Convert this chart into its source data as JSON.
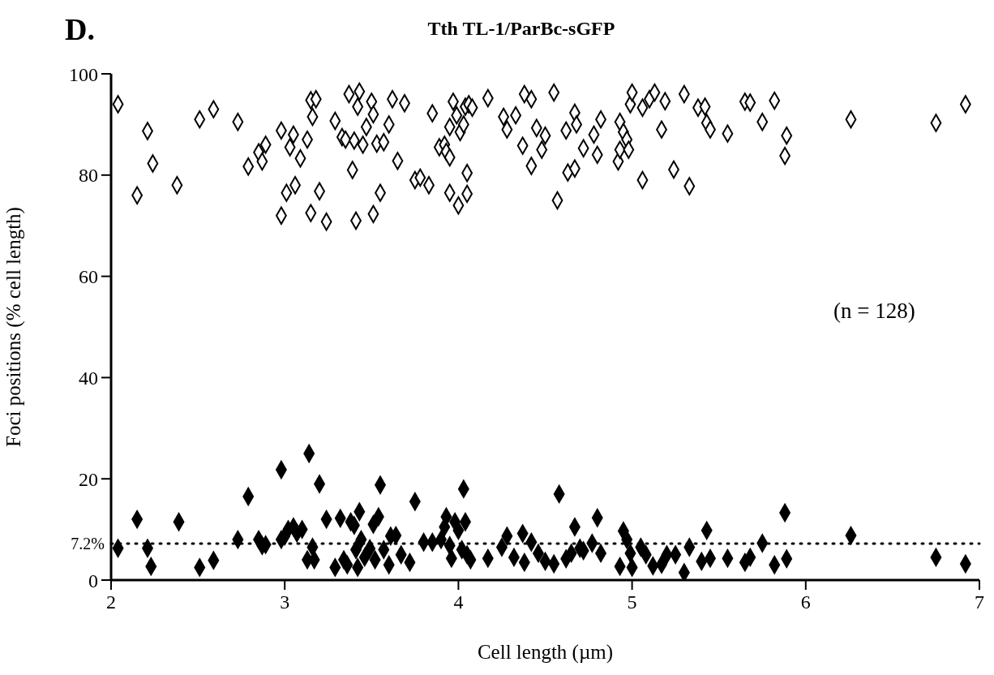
{
  "chart_data": {
    "type": "scatter",
    "title": "Tth TL-1/ParBc-sGFP",
    "xlabel": "Cell length (µm)",
    "ylabel": "Foci positions (% cell length)",
    "annotations": [
      "D.",
      "(n = 128)"
    ],
    "xlim": [
      2,
      7
    ],
    "xticks": [
      2,
      3,
      4,
      5,
      6,
      7
    ],
    "ylim": [
      0,
      100
    ],
    "yticks": [
      0,
      20,
      40,
      60,
      80,
      100
    ],
    "grid": false,
    "legend": false,
    "marker": "diamond",
    "ref_lines": [
      {
        "axis": "y",
        "value": 7.2,
        "label": "7.2%",
        "color": "#000000",
        "line_style": "dotted"
      }
    ],
    "series": [
      {
        "color": "#ffffff",
        "x": [
          2.04,
          2.15,
          2.21,
          2.24,
          2.38,
          2.51,
          2.59,
          2.73,
          2.79,
          2.85,
          2.87,
          2.89,
          2.98,
          2.98,
          3.01,
          3.03,
          3.05,
          3.06,
          3.09,
          3.13,
          3.15,
          3.16,
          3.15,
          3.18,
          3.2,
          3.24,
          3.29,
          3.33,
          3.35,
          3.37,
          3.39,
          3.4,
          3.41,
          3.42,
          3.43,
          3.45,
          3.47,
          3.5,
          3.51,
          3.53,
          3.51,
          3.55,
          3.57,
          3.6,
          3.62,
          3.65,
          3.69,
          3.75,
          3.78,
          3.83,
          3.85,
          3.89,
          3.92,
          3.93,
          3.95,
          3.95,
          3.95,
          3.97,
          3.99,
          4.0,
          4.01,
          4.03,
          4.04,
          4.05,
          4.05,
          4.06,
          4.08,
          4.17,
          4.26,
          4.28,
          4.33,
          4.37,
          4.38,
          4.42,
          4.42,
          4.45,
          4.48,
          4.5,
          4.55,
          4.57,
          4.62,
          4.63,
          4.67,
          4.67,
          4.68,
          4.72,
          4.78,
          4.8,
          4.82,
          4.92,
          4.93,
          4.93,
          4.95,
          4.97,
          4.98,
          4.99,
          5.0,
          5.06,
          5.06,
          5.1,
          5.13,
          5.17,
          5.19,
          5.24,
          5.3,
          5.33,
          5.38,
          5.42,
          5.43,
          5.45,
          5.55,
          5.65,
          5.68,
          5.75,
          5.82,
          5.88,
          5.89,
          6.26,
          6.75,
          6.92
        ],
        "values": [
          94,
          76,
          88.7,
          82.3,
          78,
          91,
          93,
          90.5,
          81.7,
          84.5,
          82.7,
          86,
          88.8,
          72,
          76.5,
          85.5,
          88,
          78,
          83.3,
          87,
          94.8,
          91.5,
          72.5,
          95,
          76.8,
          70.8,
          90.7,
          87.5,
          87,
          96,
          81,
          86.8,
          71,
          93.5,
          96.5,
          86,
          89.5,
          94.5,
          92,
          86.2,
          72.3,
          76.5,
          86.5,
          90,
          95,
          82.8,
          94.2,
          79,
          79.5,
          78,
          92.2,
          85.5,
          86,
          84.6,
          83.5,
          76.5,
          89.5,
          94.5,
          91.8,
          74,
          88.5,
          90,
          93.5,
          76.3,
          80.4,
          94,
          93.3,
          95.2,
          91.5,
          89,
          91.8,
          85.8,
          96,
          95,
          81.8,
          89.3,
          85,
          87.8,
          96.3,
          75,
          88.8,
          80.5,
          81.3,
          92.3,
          90,
          85.3,
          88,
          84,
          91,
          82.7,
          85,
          90.5,
          88.5,
          87,
          85,
          94,
          96.3,
          93.3,
          79,
          95,
          96.3,
          89,
          94.6,
          81.1,
          96,
          77.8,
          93.3,
          93.5,
          90.3,
          89,
          88.2,
          94.5,
          94.3,
          90.5,
          94.7,
          83.8,
          87.8,
          91,
          90.3,
          94
        ]
      },
      {
        "color": "#000000",
        "x": [
          2.04,
          2.15,
          2.21,
          2.23,
          2.39,
          2.51,
          2.59,
          2.73,
          2.79,
          2.85,
          2.87,
          2.89,
          2.98,
          2.98,
          3.0,
          3.02,
          3.05,
          3.07,
          3.1,
          3.13,
          3.14,
          3.16,
          3.17,
          3.2,
          3.24,
          3.29,
          3.32,
          3.34,
          3.36,
          3.38,
          3.4,
          3.41,
          3.42,
          3.43,
          3.44,
          3.46,
          3.49,
          3.51,
          3.52,
          3.54,
          3.55,
          3.57,
          3.6,
          3.61,
          3.64,
          3.67,
          3.72,
          3.75,
          3.8,
          3.85,
          3.9,
          3.92,
          3.93,
          3.95,
          3.96,
          3.98,
          4.0,
          4.02,
          4.03,
          4.04,
          4.05,
          4.07,
          4.17,
          4.25,
          4.28,
          4.32,
          4.37,
          4.38,
          4.42,
          4.46,
          4.5,
          4.55,
          4.58,
          4.62,
          4.65,
          4.67,
          4.7,
          4.72,
          4.77,
          4.8,
          4.82,
          4.93,
          4.95,
          4.97,
          4.99,
          5.0,
          5.05,
          5.08,
          5.12,
          5.17,
          5.2,
          5.25,
          5.3,
          5.33,
          5.4,
          5.43,
          5.45,
          5.55,
          5.65,
          5.68,
          5.75,
          5.82,
          5.88,
          5.89,
          6.26,
          6.75,
          6.92
        ],
        "values": [
          6.3,
          12,
          6.3,
          2.7,
          11.5,
          2.5,
          3.9,
          8,
          16.5,
          8,
          6.8,
          7,
          8,
          21.8,
          8.7,
          10,
          10.5,
          9.3,
          10,
          4,
          25,
          6.5,
          4,
          19,
          12,
          2.5,
          12.2,
          4,
          3,
          11.5,
          10.8,
          6,
          2.5,
          13.5,
          8,
          4.5,
          6.2,
          11,
          4,
          12.5,
          18.8,
          6,
          3,
          8.7,
          8.8,
          5,
          3.5,
          15.5,
          7.5,
          7.5,
          8,
          10.5,
          12.5,
          6.8,
          4.3,
          11.5,
          9.8,
          6,
          18,
          11.5,
          5,
          4,
          4.3,
          6.5,
          8.7,
          4.5,
          9.2,
          3.5,
          7.5,
          5.3,
          3.7,
          3.2,
          17,
          4.2,
          5.3,
          10.5,
          6.3,
          5.8,
          7.3,
          12.3,
          5.3,
          2.7,
          9.7,
          8,
          5.3,
          2.5,
          6.5,
          5,
          2.8,
          3.1,
          5,
          5,
          1.5,
          6.5,
          3.7,
          9.8,
          4.3,
          4.3,
          3.5,
          4.5,
          7.3,
          3,
          13.3,
          4.2,
          8.8,
          4.5,
          3.2
        ]
      }
    ]
  }
}
